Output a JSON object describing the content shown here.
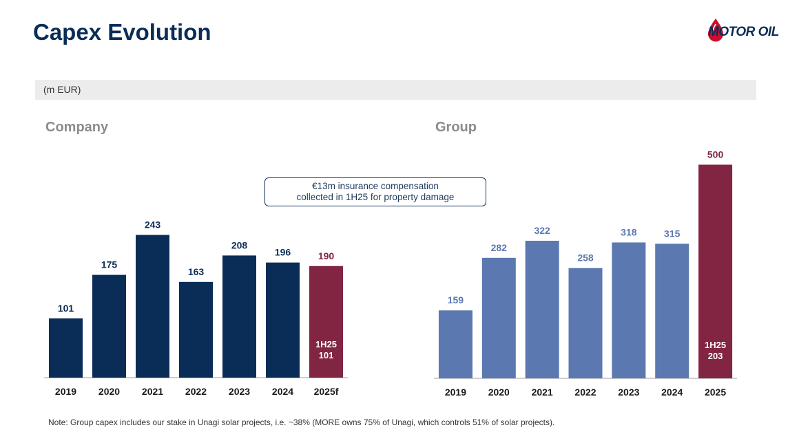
{
  "title": "Capex Evolution",
  "logo": {
    "text": "MOTOR OIL"
  },
  "unit": "(m EUR)",
  "annotation": {
    "line1": "€13m insurance compensation",
    "line2": "collected in 1H25 for property damage"
  },
  "colors": {
    "company_bar": "#0a2d57",
    "group_bar": "#5b78b0",
    "highlight_bar": "#812543",
    "axis": "#bfbfbf"
  },
  "chart_data": [
    {
      "type": "bar",
      "title": "Company",
      "categories": [
        "2019",
        "2020",
        "2021",
        "2022",
        "2023",
        "2024",
        "2025f"
      ],
      "values": [
        101,
        175,
        243,
        163,
        208,
        196,
        190
      ],
      "highlight_index": 6,
      "inner_label": [
        "1H25",
        "101"
      ],
      "ylim": [
        0,
        260
      ]
    },
    {
      "type": "bar",
      "title": "Group",
      "categories": [
        "2019",
        "2020",
        "2021",
        "2022",
        "2023",
        "2024",
        "2025"
      ],
      "values": [
        159,
        282,
        322,
        258,
        318,
        315,
        500
      ],
      "highlight_index": 6,
      "inner_label": [
        "1H25",
        "203"
      ],
      "ylim": [
        0,
        520
      ]
    }
  ],
  "note": "Note: Group capex includes our stake in Unagi solar projects, i.e. ~38% (MORE owns 75% of Unagi, which controls 51% of solar projects)."
}
